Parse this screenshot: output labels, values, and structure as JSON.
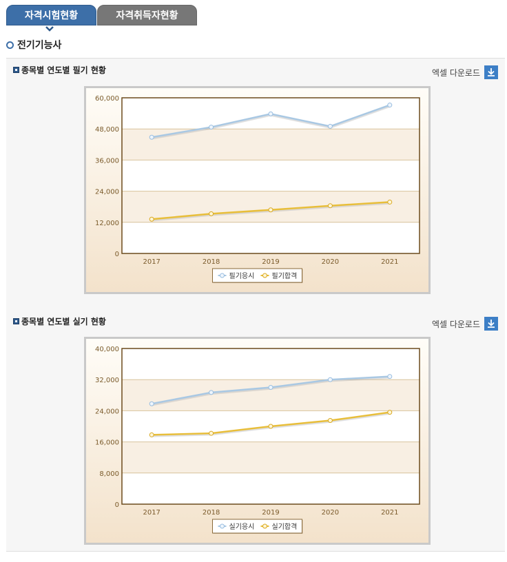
{
  "tabs": [
    {
      "label": "자격시험현황",
      "active": true
    },
    {
      "label": "자격취득자현황",
      "active": false
    }
  ],
  "page_title": "전기기능사",
  "sections": [
    {
      "title": "종목별 연도별 필기 현황",
      "excel_label": "엑셀 다운로드"
    },
    {
      "title": "종목별 연도별 실기 현황",
      "excel_label": "엑셀 다운로드"
    }
  ],
  "colors": {
    "tab_active": "#3d6fa8",
    "series_apply": "#a9c8e3",
    "series_pass": "#e8be3a",
    "axis": "#6b4a1c"
  },
  "chart_data": [
    {
      "type": "line",
      "x": [
        "2017",
        "2018",
        "2019",
        "2020",
        "2021"
      ],
      "yticks": [
        "60,000",
        "48,000",
        "36,000",
        "24,000",
        "12,000",
        "0"
      ],
      "ylim": [
        0,
        60000
      ],
      "series": [
        {
          "name": "필기응시",
          "values": [
            44800,
            48700,
            53800,
            49000,
            57200
          ]
        },
        {
          "name": "필기합격",
          "values": [
            13200,
            15300,
            16800,
            18400,
            19800
          ]
        }
      ],
      "legend": "bottom-center",
      "grid": true
    },
    {
      "type": "line",
      "x": [
        "2017",
        "2018",
        "2019",
        "2020",
        "2021"
      ],
      "yticks": [
        "40,000",
        "32,000",
        "24,000",
        "16,000",
        "8,000",
        "0"
      ],
      "ylim": [
        0,
        40000
      ],
      "series": [
        {
          "name": "실기응시",
          "values": [
            25800,
            28700,
            30000,
            32000,
            32800
          ]
        },
        {
          "name": "실기합격",
          "values": [
            17800,
            18200,
            20000,
            21500,
            23600
          ]
        }
      ],
      "legend": "bottom-center",
      "grid": true
    }
  ]
}
